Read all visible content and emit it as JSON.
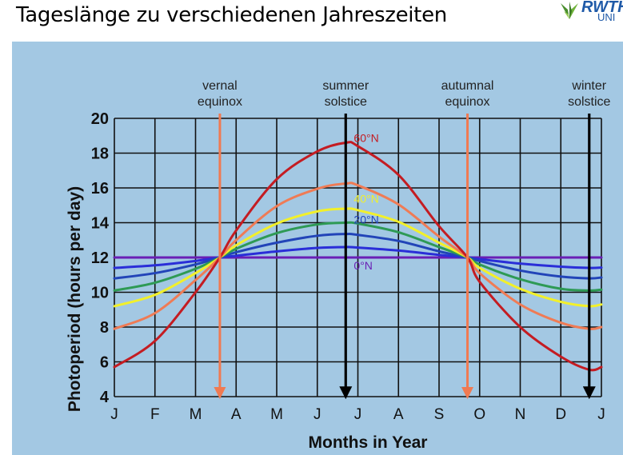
{
  "slide": {
    "title": "Tageslänge zu verschiedenen Jahreszeiten",
    "logo": {
      "brand": "RWTH",
      "sub": "UNI"
    }
  },
  "colors": {
    "panel_background": "#a3c8e3",
    "grid": "#111111",
    "equinox_arrow": "#f07a52",
    "solstice_arrow": "#000000"
  },
  "chart_data": {
    "type": "line",
    "title": "",
    "xlabel": "Months in Year",
    "ylabel": "Photoperiod (hours per day)",
    "x_tick_labels": [
      "J",
      "F",
      "M",
      "A",
      "M",
      "J",
      "J",
      "A",
      "S",
      "O",
      "N",
      "D",
      "J"
    ],
    "ylim": [
      4,
      20
    ],
    "y_ticks": [
      4,
      6,
      8,
      10,
      12,
      14,
      16,
      18,
      20
    ],
    "grid": true,
    "x": [
      0,
      1,
      2,
      2.6,
      3,
      4,
      5,
      5.7,
      6,
      7,
      8,
      8.7,
      9,
      10,
      11,
      11.7,
      12
    ],
    "series": [
      {
        "name": "0°N",
        "color": "#6a1fb5",
        "values": [
          12,
          12,
          12,
          12,
          12,
          12,
          12,
          12,
          12,
          12,
          12,
          12,
          12,
          12,
          12,
          12,
          12
        ]
      },
      {
        "name": "",
        "color": "#2a2ed8",
        "values": [
          11.4,
          11.55,
          11.8,
          12,
          12.1,
          12.35,
          12.55,
          12.6,
          12.57,
          12.4,
          12.15,
          12,
          11.9,
          11.65,
          11.47,
          11.4,
          11.42
        ]
      },
      {
        "name": "20°N",
        "color": "#2244b8",
        "values": [
          10.8,
          11.1,
          11.6,
          12,
          12.3,
          12.85,
          13.25,
          13.35,
          13.3,
          12.95,
          12.35,
          12,
          11.8,
          11.25,
          10.9,
          10.8,
          10.85
        ]
      },
      {
        "name": "",
        "color": "#2e9a55",
        "values": [
          10.1,
          10.55,
          11.35,
          12,
          12.5,
          13.4,
          13.9,
          14,
          13.95,
          13.45,
          12.6,
          12,
          11.6,
          10.75,
          10.2,
          10.1,
          10.15
        ]
      },
      {
        "name": "40°N",
        "color": "#f2f02a",
        "values": [
          9.2,
          9.85,
          11.1,
          12,
          12.7,
          13.95,
          14.65,
          14.8,
          14.72,
          14.05,
          12.85,
          12,
          11.4,
          10.2,
          9.45,
          9.2,
          9.3
        ]
      },
      {
        "name": "",
        "color": "#ef7b55",
        "values": [
          7.9,
          8.8,
          10.7,
          12,
          13.0,
          14.95,
          15.95,
          16.25,
          16.15,
          15.05,
          13.2,
          12,
          11.1,
          9.3,
          8.25,
          7.9,
          8.0
        ]
      },
      {
        "name": "60°N",
        "color": "#c41c22",
        "values": [
          5.7,
          7.2,
          10.0,
          12,
          13.55,
          16.5,
          18.1,
          18.6,
          18.4,
          16.75,
          13.8,
          12,
          10.6,
          8.0,
          6.3,
          5.55,
          5.7
        ]
      }
    ],
    "events": [
      {
        "label_line1": "vernal",
        "label_line2": "equinox",
        "x": 2.6,
        "kind": "equinox"
      },
      {
        "label_line1": "summer",
        "label_line2": "solstice",
        "x": 5.7,
        "kind": "solstice"
      },
      {
        "label_line1": "autumnal",
        "label_line2": "equinox",
        "x": 8.7,
        "kind": "equinox"
      },
      {
        "label_line1": "winter",
        "label_line2": "solstice",
        "x": 11.7,
        "kind": "solstice"
      }
    ]
  }
}
